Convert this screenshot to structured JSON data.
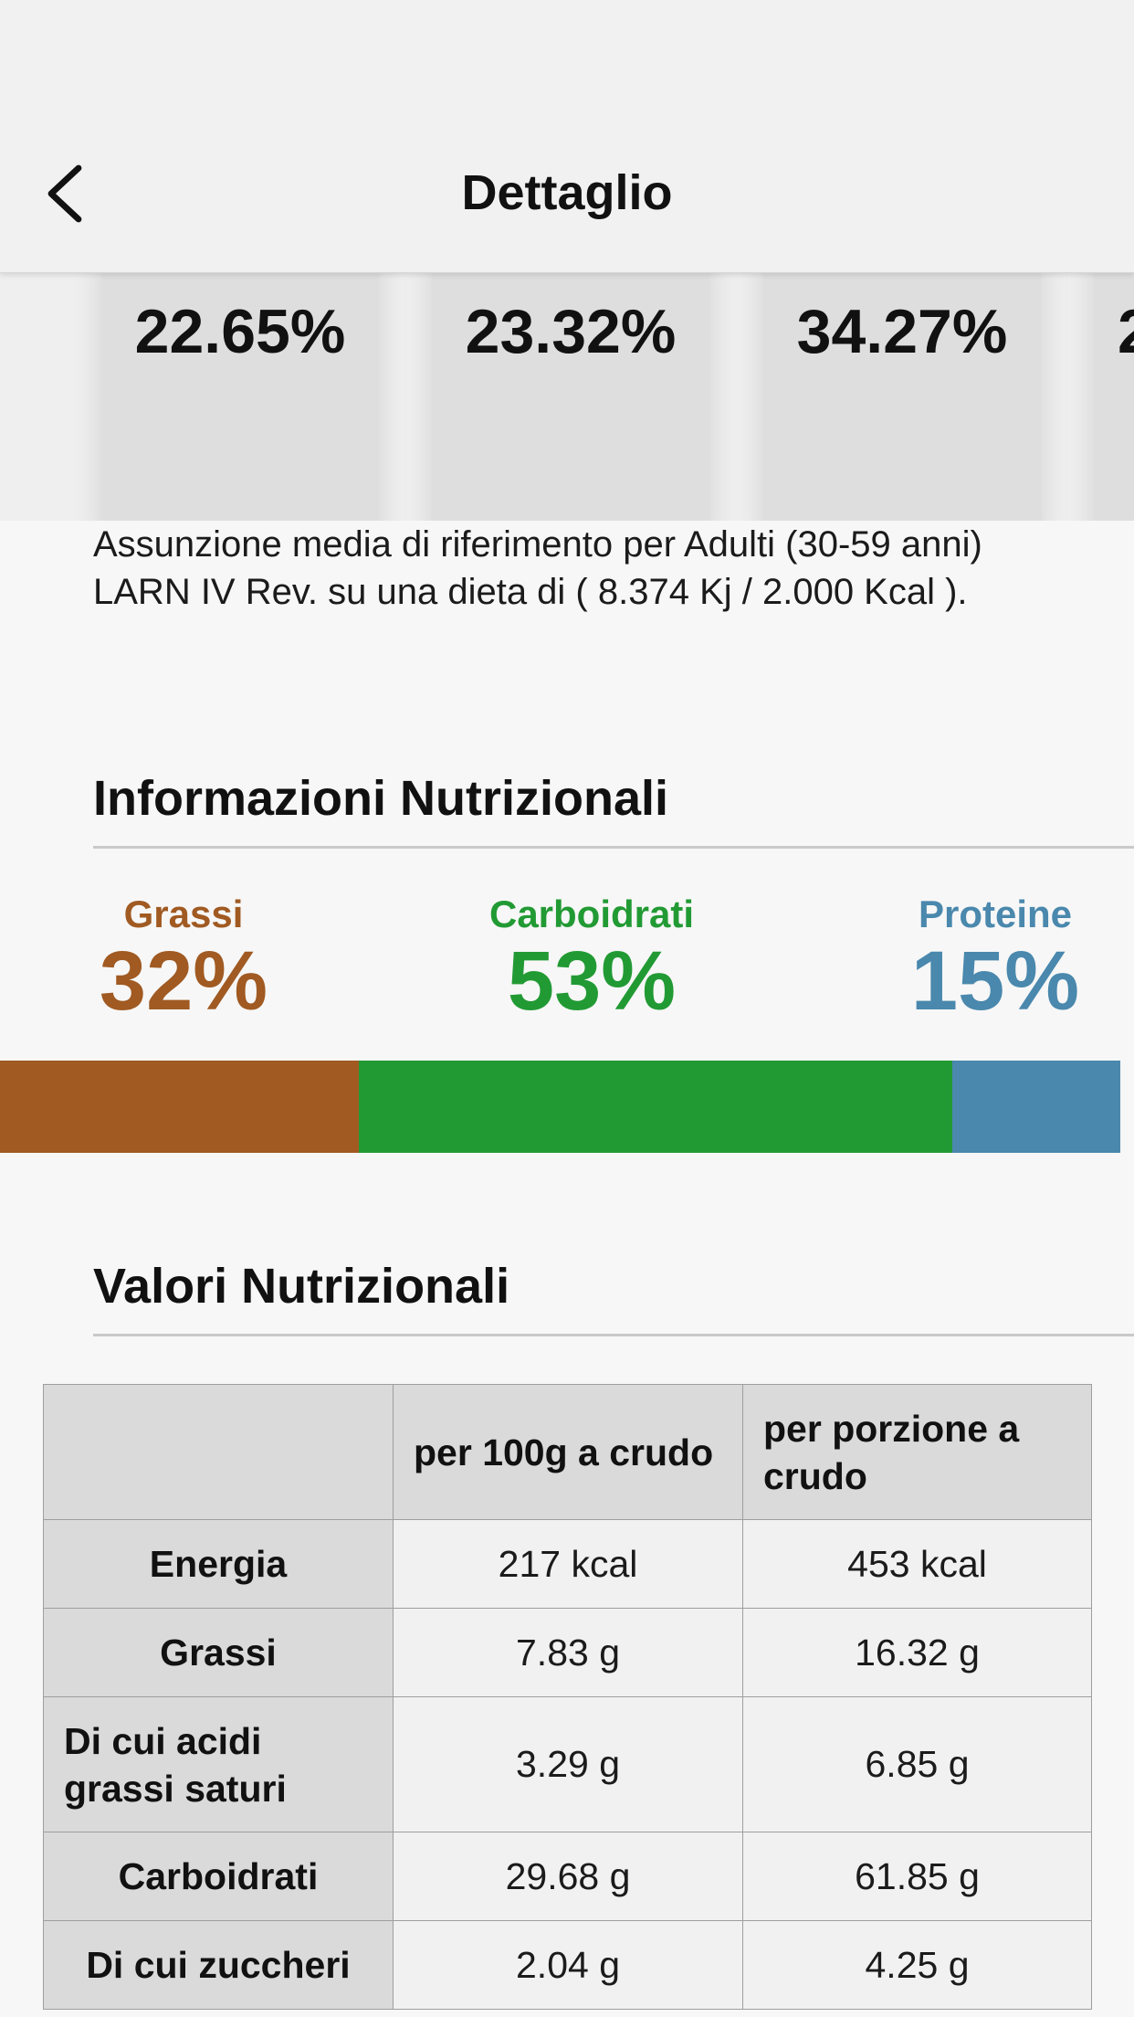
{
  "header": {
    "title": "Dettaglio",
    "back_icon": "chevron-left-icon"
  },
  "intake_tabs": [
    {
      "value": "22.65%"
    },
    {
      "value": "23.32%"
    },
    {
      "value": "34.27%"
    },
    {
      "value": "2"
    }
  ],
  "reference_text": "Assunzione media di riferimento per Adulti (30-59 anni) LARN IV Rev. su una dieta di ( 8.374 Kj / 2.000 Kcal ).",
  "nutrition_info": {
    "title": "Informazioni Nutrizionali",
    "macros": [
      {
        "label": "Grassi",
        "value": "32%",
        "fraction": 0.32,
        "color": "#a05a22"
      },
      {
        "label": "Carboidrati",
        "value": "53%",
        "fraction": 0.53,
        "color": "#229a34"
      },
      {
        "label": "Proteine",
        "value": "15%",
        "fraction": 0.15,
        "color": "#4a88ad"
      }
    ]
  },
  "nutrition_values": {
    "title": "Valori Nutrizionali",
    "columns": [
      "",
      "per 100g a crudo",
      "per porzione a crudo"
    ],
    "rows": [
      {
        "label": "Energia",
        "per100": "217 kcal",
        "portion": "453 kcal"
      },
      {
        "label": "Grassi",
        "per100": "7.83 g",
        "portion": "16.32 g"
      },
      {
        "label": "Di cui acidi grassi saturi",
        "per100": "3.29 g",
        "portion": "6.85 g"
      },
      {
        "label": "Carboidrati",
        "per100": "29.68 g",
        "portion": "61.85 g"
      },
      {
        "label": "Di cui zuccheri",
        "per100": "2.04 g",
        "portion": "4.25 g"
      }
    ]
  }
}
